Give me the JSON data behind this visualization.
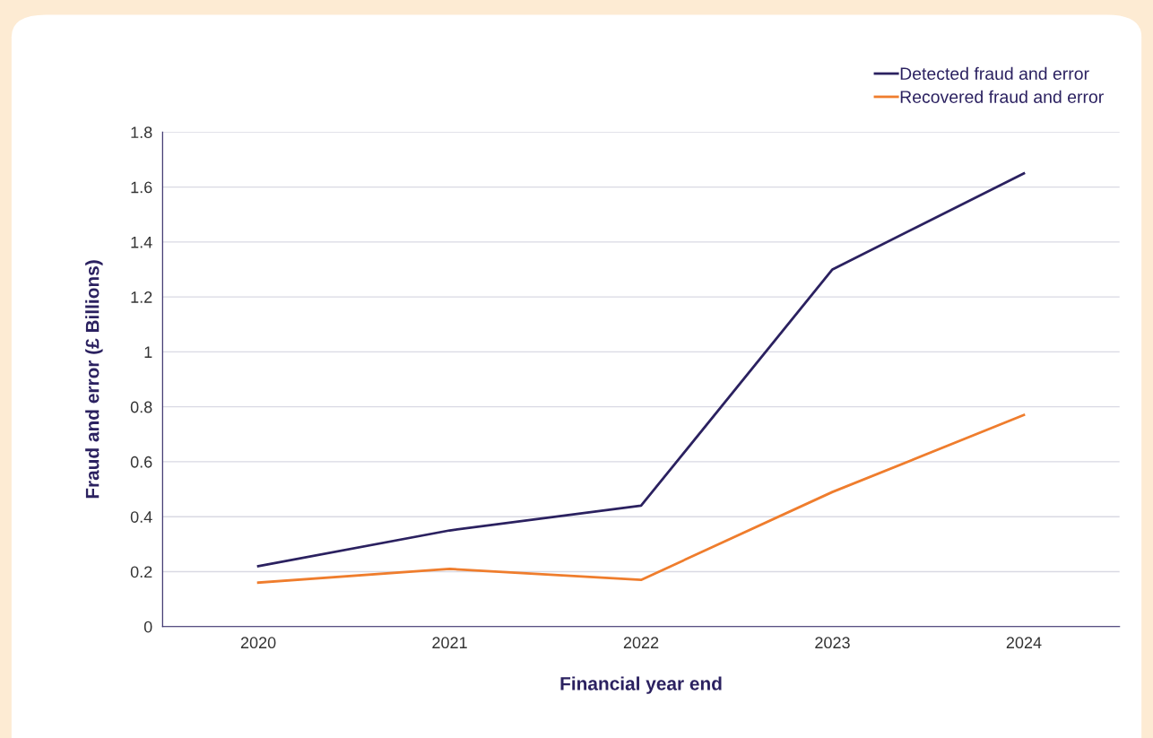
{
  "chart_data": {
    "type": "line",
    "xlabel": "Financial year end",
    "ylabel": "Fraud and error (£ Billions)",
    "categories": [
      "2020",
      "2021",
      "2022",
      "2023",
      "2024"
    ],
    "series": [
      {
        "name": "Detected fraud and error",
        "color": "#2b2160",
        "values": [
          0.22,
          0.35,
          0.44,
          1.3,
          1.65
        ]
      },
      {
        "name": "Recovered fraud and error",
        "color": "#ef7d2d",
        "values": [
          0.16,
          0.21,
          0.17,
          0.49,
          0.77
        ]
      }
    ],
    "ylim": [
      0,
      1.8
    ],
    "yticks": [
      0,
      0.2,
      0.4,
      0.6,
      0.8,
      1,
      1.2,
      1.4,
      1.6,
      1.8
    ],
    "grid": "y",
    "legend": "top right",
    "line_style": "solid",
    "marker": "none"
  }
}
